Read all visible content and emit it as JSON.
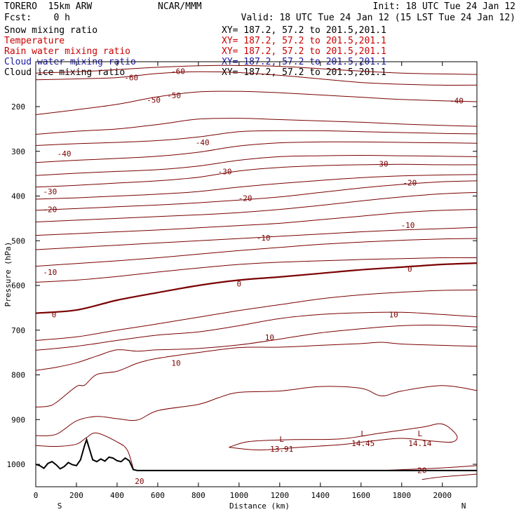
{
  "header": {
    "model": "TORERO  15km ARW",
    "center": "NCAR/MMM",
    "init": "Init: 18 UTC Tue 24 Jan 12",
    "fcst": "Fcst:    0 h",
    "valid": "Valid: 18 UTC Tue 24 Jan 12 (15 LST Tue 24 Jan 12)"
  },
  "fields": [
    {
      "label": "Snow mixing ratio",
      "xy": "XY= 187.2, 57.2 to 201.5,201.1",
      "color": "#000000"
    },
    {
      "label": "Temperature",
      "xy": "XY= 187.2, 57.2 to 201.5,201.1",
      "color": "#cc0000"
    },
    {
      "label": "Rain water mixing ratio",
      "xy": "XY= 187.2, 57.2 to 201.5,201.1",
      "color": "#cc0000"
    },
    {
      "label": "Cloud water mixing ratio",
      "xy": "XY= 187.2, 57.2 to 201.5,201.1",
      "color": "#1a1aa0"
    },
    {
      "label": "Cloud ice mixing ratio",
      "xy": "XY= 187.2, 57.2 to 201.5,201.1",
      "color": "#000000"
    }
  ],
  "chart_data": {
    "type": "line",
    "title": "",
    "xlabel": "Distance (km)",
    "ylabel": "Pressure (hPa)",
    "xlim": [
      0,
      2170
    ],
    "ylim": [
      1050,
      100
    ],
    "x_ticks": [
      "0",
      "200",
      "400",
      "600",
      "800",
      "1000",
      "1200",
      "1400",
      "1600",
      "1800",
      "2000"
    ],
    "y_ticks": [
      "200",
      "300",
      "400",
      "500",
      "600",
      "700",
      "800",
      "900",
      "1000"
    ],
    "x_ends": {
      "left": "S",
      "right": "N"
    },
    "grid": false,
    "contour_color": "#7a0000",
    "isotherms": [
      {
        "level": -60,
        "x": [
          0,
          300,
          600,
          900,
          1200,
          1500,
          1800,
          2170
        ],
        "p": [
          125,
          120,
          112,
          108,
          110,
          118,
          125,
          128
        ]
      },
      {
        "level": -60,
        "x": [
          0,
          200,
          400,
          600,
          800,
          1000,
          1200,
          1400,
          1600,
          1800,
          2000,
          2170
        ],
        "p": [
          140,
          138,
          135,
          126,
          122,
          124,
          130,
          138,
          146,
          150,
          152,
          152
        ]
      },
      {
        "level": -55,
        "x": [
          0,
          200,
          400,
          600,
          800,
          1000,
          1200,
          1400,
          1600,
          1800,
          2000,
          2170
        ],
        "p": [
          218,
          207,
          195,
          178,
          167,
          166,
          169,
          174,
          179,
          184,
          187,
          189
        ]
      },
      {
        "level": -50,
        "x": [
          0,
          200,
          400,
          600,
          800,
          1000,
          1200,
          1400,
          1600,
          1800,
          2000,
          2170
        ],
        "p": [
          262,
          255,
          250,
          240,
          228,
          226,
          229,
          232,
          235,
          239,
          242,
          244
        ]
      },
      {
        "level": -45,
        "x": [
          0,
          200,
          400,
          600,
          800,
          1000,
          1200,
          1400,
          1600,
          1800,
          2000,
          2170
        ],
        "p": [
          287,
          283,
          280,
          276,
          268,
          256,
          254,
          254,
          256,
          258,
          260,
          261
        ]
      },
      {
        "level": -40,
        "x": [
          0,
          200,
          400,
          600,
          800,
          1000,
          1200,
          1400,
          1600,
          1800,
          2000,
          2170
        ],
        "p": [
          325,
          320,
          316,
          311,
          302,
          288,
          281,
          279,
          279,
          280,
          281,
          282
        ]
      },
      {
        "level": -35,
        "x": [
          0,
          200,
          400,
          600,
          800,
          1000,
          1200,
          1400,
          1600,
          1800,
          2000,
          2170
        ],
        "p": [
          354,
          349,
          345,
          341,
          333,
          320,
          312,
          310,
          309,
          310,
          311,
          312
        ]
      },
      {
        "level": -30,
        "x": [
          0,
          200,
          400,
          600,
          800,
          1000,
          1200,
          1400,
          1600,
          1800,
          2000,
          2170
        ],
        "p": [
          380,
          376,
          371,
          366,
          358,
          344,
          336,
          332,
          330,
          329,
          330,
          330
        ]
      },
      {
        "level": -25,
        "x": [
          0,
          200,
          400,
          600,
          800,
          1000,
          1200,
          1400,
          1600,
          1800,
          2000,
          2170
        ],
        "p": [
          407,
          404,
          400,
          396,
          390,
          380,
          372,
          365,
          359,
          355,
          353,
          352
        ]
      },
      {
        "level": -20,
        "x": [
          0,
          200,
          400,
          600,
          800,
          1000,
          1200,
          1400,
          1600,
          1800,
          2000,
          2170
        ],
        "p": [
          432,
          428,
          424,
          420,
          415,
          409,
          402,
          392,
          382,
          374,
          368,
          366
        ]
      },
      {
        "level": -15,
        "x": [
          0,
          200,
          400,
          600,
          800,
          1000,
          1200,
          1400,
          1600,
          1800,
          2000,
          2170
        ],
        "p": [
          458,
          454,
          450,
          446,
          442,
          437,
          430,
          421,
          411,
          402,
          395,
          392
        ]
      },
      {
        "level": -10,
        "x": [
          0,
          200,
          400,
          600,
          800,
          1000,
          1200,
          1400,
          1600,
          1800,
          2000,
          2170
        ],
        "p": [
          488,
          484,
          480,
          476,
          471,
          466,
          461,
          453,
          445,
          437,
          432,
          430
        ]
      },
      {
        "level": -5,
        "x": [
          0,
          200,
          400,
          600,
          800,
          1000,
          1200,
          1400,
          1600,
          1800,
          2000,
          2170
        ],
        "p": [
          520,
          515,
          510,
          505,
          500,
          495,
          490,
          485,
          480,
          476,
          473,
          470
        ]
      },
      {
        "level": -5,
        "x": [
          0,
          200,
          400,
          600,
          800,
          1000,
          1200,
          1400,
          1600,
          1800,
          2000,
          2170
        ],
        "p": [
          557,
          551,
          545,
          538,
          530,
          522,
          515,
          508,
          503,
          499,
          496,
          495
        ]
      },
      {
        "level": -5,
        "x": [
          0,
          200,
          400,
          600,
          800,
          1000,
          1200,
          1400,
          1600,
          1800,
          2000,
          2170
        ],
        "p": [
          593,
          588,
          580,
          570,
          561,
          553,
          548,
          545,
          542,
          540,
          538,
          538
        ]
      },
      {
        "level": 0,
        "x": [
          0,
          200,
          400,
          600,
          800,
          1000,
          1200,
          1400,
          1600,
          1800,
          2000,
          2170
        ],
        "p": [
          662,
          655,
          633,
          616,
          600,
          588,
          581,
          573,
          565,
          559,
          553,
          550
        ]
      },
      {
        "level": 5,
        "x": [
          0,
          200,
          400,
          600,
          800,
          1000,
          1200,
          1400,
          1600,
          1800,
          2000,
          2170
        ],
        "p": [
          723,
          715,
          700,
          686,
          671,
          656,
          643,
          630,
          621,
          615,
          611,
          610
        ]
      },
      {
        "level": 10,
        "x": [
          0,
          200,
          400,
          600,
          800,
          1000,
          1200,
          1400,
          1600,
          1800,
          2000,
          2170
        ],
        "p": [
          745,
          736,
          723,
          711,
          704,
          690,
          674,
          665,
          661,
          660,
          665,
          670
        ]
      },
      {
        "level": 10,
        "x": [
          0,
          100,
          200,
          300,
          400,
          500,
          600,
          800,
          1000,
          1200,
          1400,
          1600,
          1800,
          2000,
          2170
        ],
        "p": [
          790,
          783,
          773,
          758,
          744,
          747,
          744,
          741,
          733,
          720,
          706,
          697,
          690,
          689,
          693
        ]
      },
      {
        "level": 15,
        "x": [
          0,
          60,
          100,
          200,
          240,
          300,
          400,
          500,
          600,
          800,
          1000,
          1200,
          1400,
          1600,
          1700,
          1800,
          2000,
          2170
        ],
        "p": [
          872,
          870,
          862,
          826,
          823,
          799,
          792,
          774,
          763,
          750,
          739,
          738,
          734,
          730,
          727,
          731,
          734,
          736
        ]
      },
      {
        "level": 17,
        "x": [
          0,
          100,
          200,
          300,
          400,
          500,
          600,
          800,
          900,
          1000,
          1200,
          1400,
          1600,
          1700,
          1800,
          2000,
          2170
        ],
        "p": [
          936,
          933,
          903,
          893,
          898,
          901,
          880,
          866,
          851,
          839,
          836,
          826,
          830,
          847,
          836,
          824,
          835
        ]
      },
      {
        "level": 20,
        "x": [
          0,
          100,
          200,
          250,
          300,
          400,
          450,
          480
        ],
        "p": [
          958,
          960,
          955,
          940,
          930,
          950,
          968,
          1010
        ]
      },
      {
        "level": 20,
        "x": [
          1700,
          1800,
          2000,
          2170
        ],
        "p": [
          1014,
          1012,
          1008,
          1003
        ]
      },
      {
        "level": 20,
        "x": [
          1900,
          2000,
          2170
        ],
        "p": [
          1034,
          1028,
          1022
        ]
      }
    ],
    "closed_contours": [
      {
        "x": [
          950,
          1050,
          1250,
          1500,
          1700,
          1900,
          2000,
          2070,
          2050,
          1950,
          1800,
          1650,
          1500,
          1300,
          1100,
          950
        ],
        "p": [
          962,
          949,
          945,
          943,
          930,
          917,
          910,
          935,
          950,
          948,
          942,
          948,
          956,
          962,
          968,
          962
        ]
      }
    ],
    "contour_labels": [
      {
        "text": "-60",
        "x": 470,
        "p": 135
      },
      {
        "text": "-60",
        "x": 700,
        "p": 121
      },
      {
        "text": "-50",
        "x": 580,
        "p": 185
      },
      {
        "text": "-50",
        "x": 680,
        "p": 175
      },
      {
        "text": "-40",
        "x": 2070,
        "p": 187
      },
      {
        "text": "-40",
        "x": 820,
        "p": 280
      },
      {
        "text": "-40",
        "x": 140,
        "p": 305
      },
      {
        "text": "-30",
        "x": 1700,
        "p": 328
      },
      {
        "text": "-30",
        "x": 930,
        "p": 345
      },
      {
        "text": "-20",
        "x": 1840,
        "p": 370
      },
      {
        "text": "-30",
        "x": 70,
        "p": 390
      },
      {
        "text": "-20",
        "x": 1030,
        "p": 405
      },
      {
        "text": "-20",
        "x": 70,
        "p": 430
      },
      {
        "text": "-10",
        "x": 1830,
        "p": 465
      },
      {
        "text": "-10",
        "x": 1120,
        "p": 493
      },
      {
        "text": "-10",
        "x": 70,
        "p": 570
      },
      {
        "text": "0",
        "x": 1840,
        "p": 563
      },
      {
        "text": "0",
        "x": 1000,
        "p": 596
      },
      {
        "text": "0",
        "x": 90,
        "p": 665
      },
      {
        "text": "10",
        "x": 1760,
        "p": 665
      },
      {
        "text": "10",
        "x": 1150,
        "p": 716
      },
      {
        "text": "10",
        "x": 690,
        "p": 773
      },
      {
        "text": "20",
        "x": 1900,
        "p": 1013
      },
      {
        "text": "20",
        "x": 510,
        "p": 1038
      }
    ],
    "pressure_lows": [
      {
        "text": "L",
        "value": "13.91",
        "x": 1210,
        "p": 953
      },
      {
        "text": "L",
        "value": "14.45",
        "x": 1610,
        "p": 940
      },
      {
        "text": "L",
        "value": "14.14",
        "x": 1890,
        "p": 940
      }
    ],
    "terrain": {
      "x": [
        0,
        20,
        40,
        60,
        80,
        100,
        120,
        140,
        160,
        180,
        200,
        220,
        240,
        250,
        260,
        280,
        300,
        320,
        340,
        360,
        380,
        400,
        420,
        440,
        460,
        480,
        500,
        2170
      ],
      "p": [
        1000,
        1003,
        1009,
        998,
        994,
        1001,
        1010,
        1005,
        996,
        1001,
        1003,
        990,
        958,
        945,
        960,
        990,
        994,
        988,
        993,
        984,
        986,
        992,
        994,
        986,
        992,
        1012,
        1014,
        1014
      ]
    }
  }
}
